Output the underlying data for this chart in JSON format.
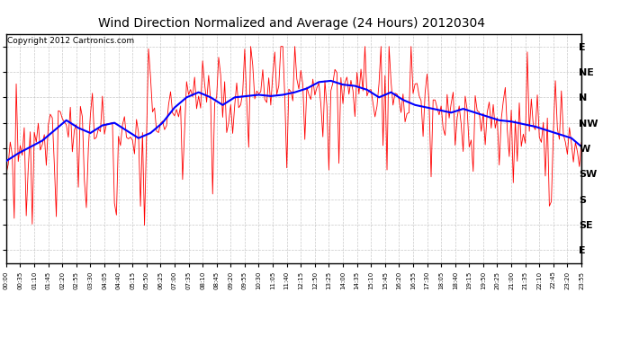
{
  "title": "Wind Direction Normalized and Average (24 Hours) 20120304",
  "copyright_text": "Copyright 2012 Cartronics.com",
  "y_labels": [
    "E",
    "NE",
    "N",
    "NW",
    "W",
    "SW",
    "S",
    "SE",
    "E"
  ],
  "ytick_positions": [
    8,
    7,
    6,
    5,
    4,
    3,
    2,
    1,
    0
  ],
  "background_color": "#ffffff",
  "plot_bg_color": "#ffffff",
  "grid_color": "#bbbbbb",
  "red_color": "#ff0000",
  "blue_color": "#0000ff",
  "title_fontsize": 10,
  "copyright_fontsize": 6.5,
  "x_tick_step": 7,
  "n_points": 288
}
